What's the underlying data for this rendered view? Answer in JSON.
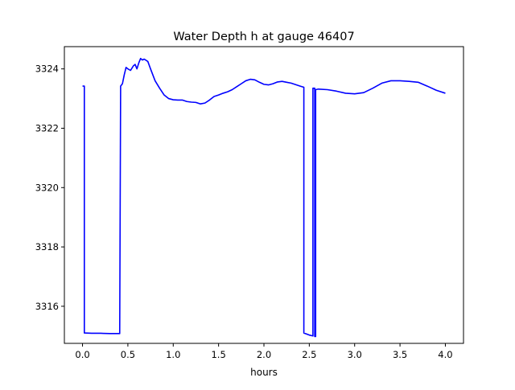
{
  "chart_data": {
    "type": "line",
    "title": "Water Depth h at gauge 46407",
    "xlabel": "hours",
    "ylabel": "",
    "xlim": [
      -0.2,
      4.2
    ],
    "ylim": [
      3314.75,
      3324.75
    ],
    "xticks": [
      0.0,
      0.5,
      1.0,
      1.5,
      2.0,
      2.5,
      3.0,
      3.5,
      4.0
    ],
    "xtick_labels": [
      "0.0",
      "0.5",
      "1.0",
      "1.5",
      "2.0",
      "2.5",
      "3.0",
      "3.5",
      "4.0"
    ],
    "yticks": [
      3316,
      3318,
      3320,
      3322,
      3324
    ],
    "ytick_labels": [
      "3316",
      "3318",
      "3320",
      "3322",
      "3324"
    ],
    "grid": false,
    "series": [
      {
        "color": "#0000ff",
        "x": [
          0.0,
          0.02,
          0.02,
          0.1,
          0.2,
          0.3,
          0.41,
          0.42,
          0.42,
          0.44,
          0.46,
          0.48,
          0.5,
          0.53,
          0.56,
          0.58,
          0.6,
          0.62,
          0.64,
          0.66,
          0.68,
          0.72,
          0.75,
          0.8,
          0.85,
          0.9,
          0.95,
          1.0,
          1.05,
          1.1,
          1.15,
          1.2,
          1.25,
          1.3,
          1.35,
          1.4,
          1.45,
          1.5,
          1.55,
          1.6,
          1.65,
          1.7,
          1.75,
          1.8,
          1.85,
          1.9,
          1.95,
          2.0,
          2.05,
          2.1,
          2.15,
          2.2,
          2.25,
          2.3,
          2.35,
          2.4,
          2.44,
          2.44,
          2.5,
          2.54,
          2.54,
          2.56,
          2.56,
          2.57,
          2.57,
          2.6,
          2.7,
          2.8,
          2.9,
          3.0,
          3.1,
          3.2,
          3.3,
          3.4,
          3.5,
          3.6,
          3.7,
          3.8,
          3.9,
          4.0
        ],
        "y": [
          3323.42,
          3323.42,
          3315.1,
          3315.09,
          3315.09,
          3315.08,
          3315.08,
          3323.4,
          3323.42,
          3323.5,
          3323.8,
          3324.05,
          3324.0,
          3323.95,
          3324.1,
          3324.15,
          3324.0,
          3324.2,
          3324.35,
          3324.3,
          3324.33,
          3324.25,
          3324.0,
          3323.6,
          3323.35,
          3323.12,
          3323.0,
          3322.96,
          3322.95,
          3322.95,
          3322.9,
          3322.88,
          3322.87,
          3322.82,
          3322.85,
          3322.95,
          3323.07,
          3323.12,
          3323.18,
          3323.23,
          3323.3,
          3323.4,
          3323.5,
          3323.6,
          3323.65,
          3323.63,
          3323.55,
          3323.48,
          3323.46,
          3323.5,
          3323.56,
          3323.58,
          3323.55,
          3323.52,
          3323.47,
          3323.42,
          3323.38,
          3315.1,
          3315.03,
          3315.0,
          3323.35,
          3323.35,
          3314.98,
          3314.98,
          3323.3,
          3323.32,
          3323.3,
          3323.25,
          3323.18,
          3323.16,
          3323.2,
          3323.35,
          3323.52,
          3323.6,
          3323.6,
          3323.58,
          3323.55,
          3323.42,
          3323.28,
          3323.18
        ]
      }
    ]
  }
}
